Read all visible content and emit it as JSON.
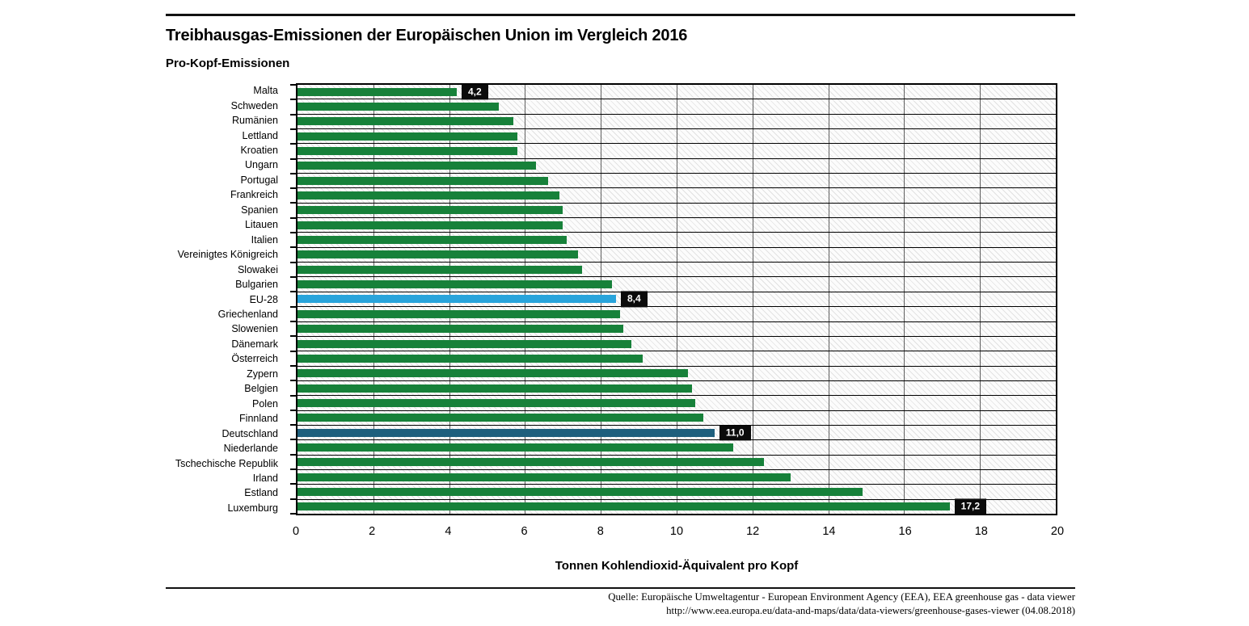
{
  "header": {
    "title": "Treibhausgas-Emissionen der Europäischen Union im Vergleich 2016",
    "subtitle": "Pro-Kopf-Emissionen"
  },
  "chart_data": {
    "type": "bar",
    "orientation": "horizontal",
    "title": "Treibhausgas-Emissionen der Europäischen Union im Vergleich 2016",
    "subtitle": "Pro-Kopf-Emissionen",
    "xlabel": "Tonnen Kohlendioxid-Äquivalent pro Kopf",
    "xlim": [
      0,
      20
    ],
    "xticks": [
      0,
      2,
      4,
      6,
      8,
      10,
      12,
      14,
      16,
      18,
      20
    ],
    "grid": "vertical-ticks-and-row-separators",
    "categories": [
      "Malta",
      "Schweden",
      "Rumänien",
      "Lettland",
      "Kroatien",
      "Ungarn",
      "Portugal",
      "Frankreich",
      "Spanien",
      "Litauen",
      "Italien",
      "Vereinigtes Königreich",
      "Slowakei",
      "Bulgarien",
      "EU-28",
      "Griechenland",
      "Slowenien",
      "Dänemark",
      "Österreich",
      "Zypern",
      "Belgien",
      "Polen",
      "Finnland",
      "Deutschland",
      "Niederlande",
      "Tschechische Republik",
      "Irland",
      "Estland",
      "Luxemburg"
    ],
    "values": [
      4.2,
      5.3,
      5.7,
      5.8,
      5.8,
      6.3,
      6.6,
      6.9,
      7.0,
      7.0,
      7.1,
      7.4,
      7.5,
      8.3,
      8.4,
      8.5,
      8.6,
      8.8,
      9.1,
      10.3,
      10.4,
      10.5,
      10.7,
      11.0,
      11.5,
      12.3,
      13.0,
      14.9,
      17.2
    ],
    "annotated_values": {
      "Malta": "4,2",
      "EU-28": "8,4",
      "Deutschland": "11,0",
      "Luxemburg": "17,2"
    },
    "colors": {
      "default_bar": "#17813a",
      "highlights": {
        "EU-28": "#29a4db",
        "Deutschland": "#1e5f7d"
      },
      "value_label_bg": "#0b0b0b",
      "value_label_text": "#ffffff"
    }
  },
  "footer": {
    "line1": "Quelle: Europäische Umweltagentur - European Environment Agency (EEA), EEA greenhouse gas - data viewer",
    "line2": "http://www.eea.europa.eu/data-and-maps/data/data-viewers/greenhouse-gases-viewer (04.08.2018)"
  }
}
